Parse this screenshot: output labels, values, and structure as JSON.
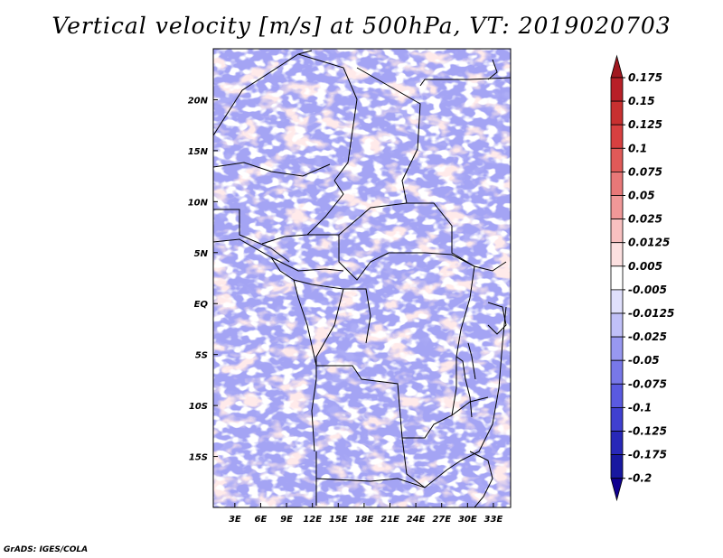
{
  "title": "Vertical velocity [m/s] at 500hPa, VT: 2019020703",
  "credit": "GrADS: IGES/COLA",
  "chart_data": {
    "type": "heatmap",
    "title": "Vertical velocity [m/s] at 500hPa, VT: 2019020703",
    "variable": "Vertical velocity",
    "units": "m/s",
    "level": "500hPa",
    "valid_time": "2019020703",
    "xlim": [
      0.5,
      35
    ],
    "ylim": [
      -20,
      25
    ],
    "x_ticks": [
      {
        "value": 3,
        "label": "3E"
      },
      {
        "value": 6,
        "label": "6E"
      },
      {
        "value": 9,
        "label": "9E"
      },
      {
        "value": 12,
        "label": "12E"
      },
      {
        "value": 15,
        "label": "15E"
      },
      {
        "value": 18,
        "label": "18E"
      },
      {
        "value": 21,
        "label": "21E"
      },
      {
        "value": 24,
        "label": "24E"
      },
      {
        "value": 27,
        "label": "27E"
      },
      {
        "value": 30,
        "label": "30E"
      },
      {
        "value": 33,
        "label": "33E"
      }
    ],
    "y_ticks": [
      {
        "value": 20,
        "label": "20N"
      },
      {
        "value": 15,
        "label": "15N"
      },
      {
        "value": 10,
        "label": "10N"
      },
      {
        "value": 5,
        "label": "5N"
      },
      {
        "value": 0,
        "label": "EQ"
      },
      {
        "value": -5,
        "label": "5S"
      },
      {
        "value": -10,
        "label": "10S"
      },
      {
        "value": -15,
        "label": "15S"
      }
    ],
    "colorbar": {
      "labels": [
        "0.175",
        "0.15",
        "0.125",
        "0.1",
        "0.075",
        "0.05",
        "0.025",
        "0.0125",
        "0.005",
        "-0.005",
        "-0.0125",
        "-0.025",
        "-0.05",
        "-0.075",
        "-0.1",
        "-0.125",
        "-0.175",
        "-0.2"
      ],
      "colors": [
        "#a01820",
        "#b82028",
        "#c83030",
        "#d84040",
        "#e05a58",
        "#e87878",
        "#f09898",
        "#f8c0c0",
        "#fce0e0",
        "#ffffff",
        "#e0e0fc",
        "#c0c0f8",
        "#9898f0",
        "#7878e8",
        "#5a5ae0",
        "#4040d0",
        "#2828b8",
        "#1818a0",
        "#100090"
      ]
    }
  }
}
